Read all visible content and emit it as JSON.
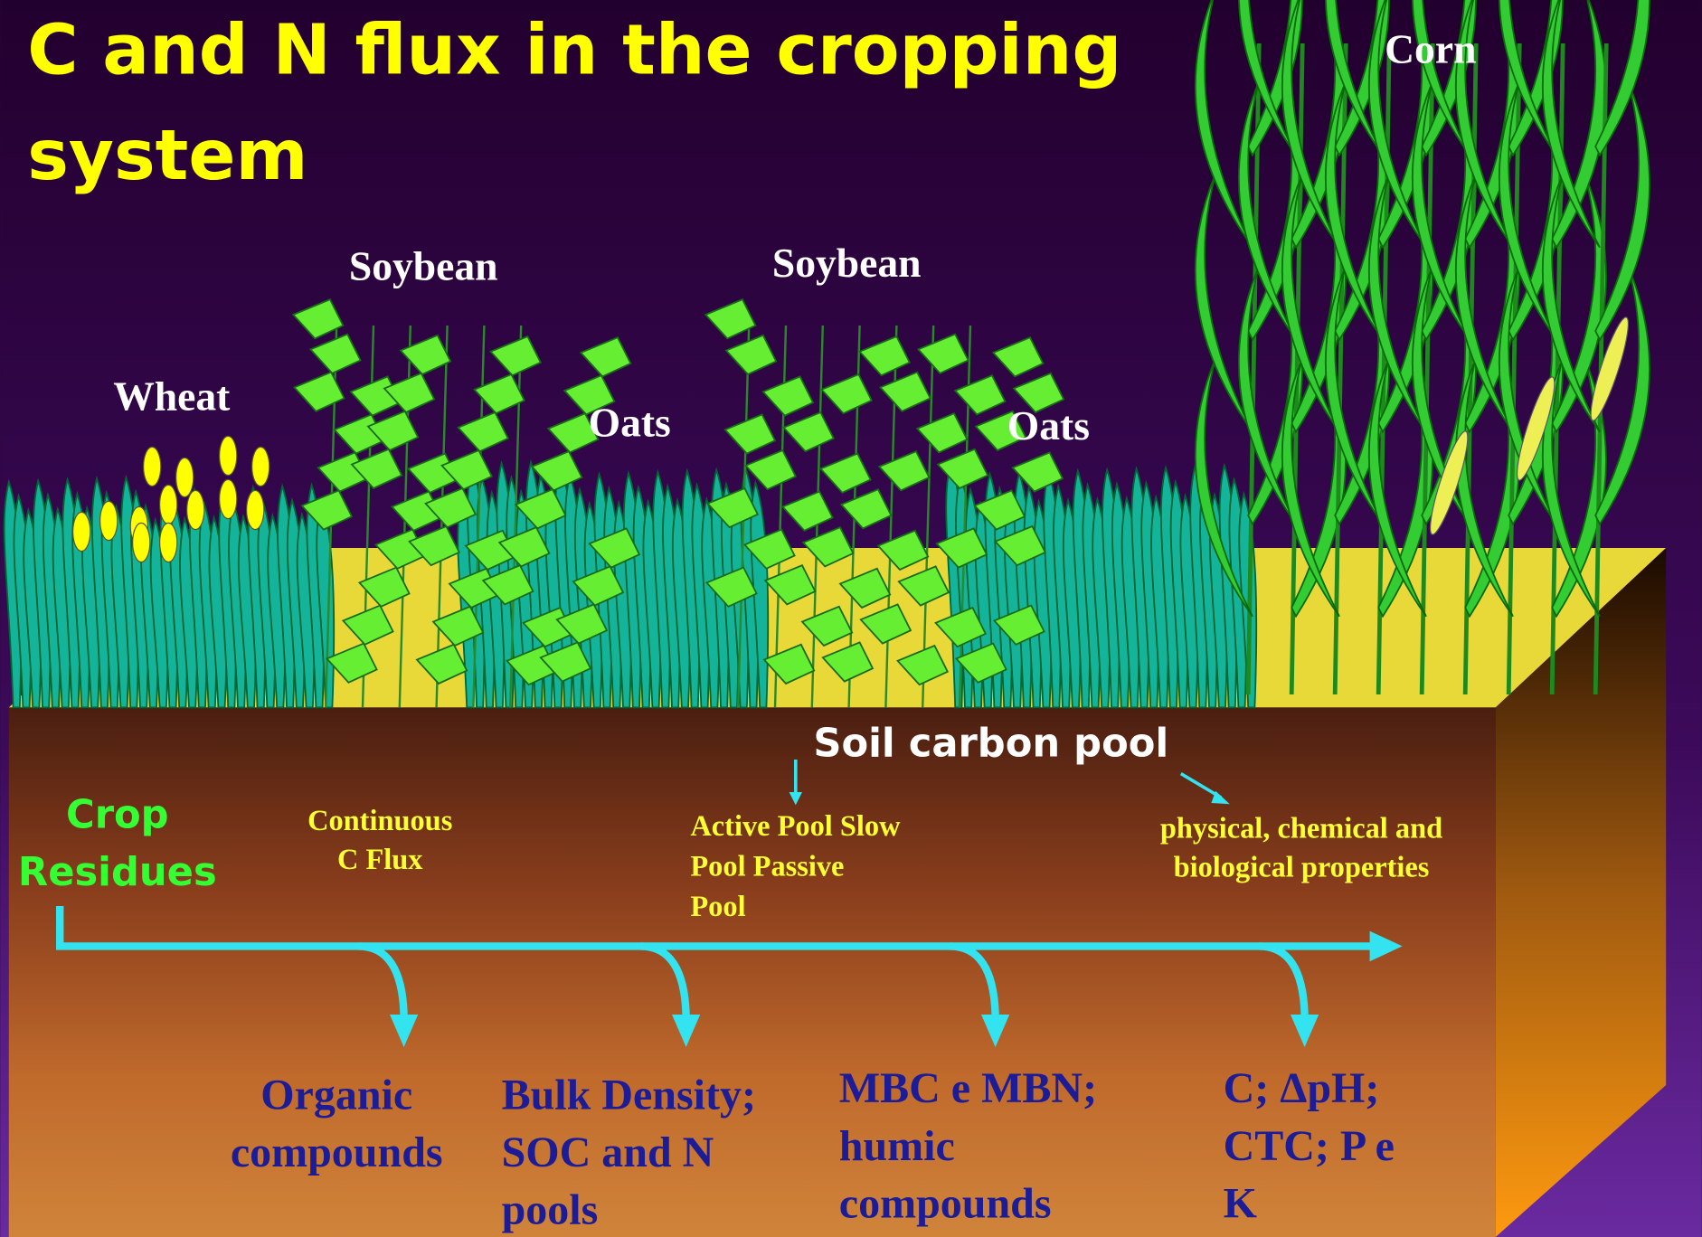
{
  "title": {
    "lines": [
      "C and N flux in the cropping",
      "system"
    ]
  },
  "crops": [
    "Wheat",
    "Soybean",
    "Oats",
    "Soybean",
    "Oats",
    "Corn"
  ],
  "soil_pool": "Soil carbon pool",
  "input": {
    "lines": [
      "Crop",
      "Residues"
    ]
  },
  "notes": [
    {
      "lines": [
        "Continuous",
        "C Flux"
      ]
    },
    {
      "lines": [
        "Active Pool Slow",
        "Pool  Passive",
        "Pool"
      ]
    },
    {
      "lines": [
        "physical, chemical and",
        "biological properties"
      ]
    }
  ],
  "outcomes": [
    {
      "lines": [
        "Organic",
        "compounds"
      ]
    },
    {
      "lines": [
        "Bulk Density;",
        "SOC and N",
        "pools"
      ]
    },
    {
      "lines": [
        "MBC e MBN;",
        "humic",
        "compounds"
      ]
    },
    {
      "lines": [
        "C; ΔpH;",
        "CTC; P e",
        "K"
      ]
    }
  ]
}
